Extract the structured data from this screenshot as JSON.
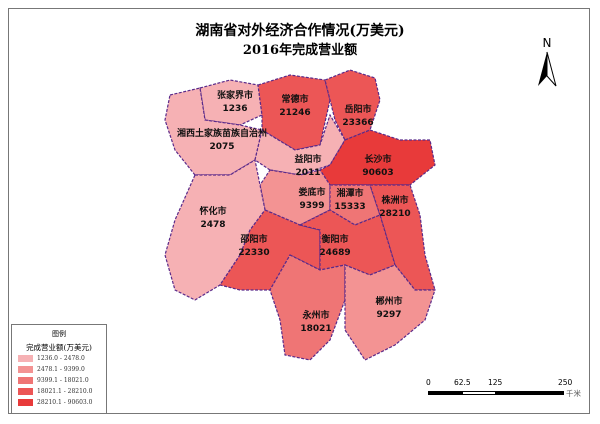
{
  "title": {
    "line1": "湖南省对外经济合作情况(万美元)",
    "line2": "2016年完成营业额"
  },
  "colors": {
    "class1": "#f6b1b4",
    "class2": "#f39393",
    "class3": "#ef7575",
    "class4": "#ec5656",
    "class5": "#e83a3a",
    "border": "#5a2a8a"
  },
  "regions": [
    {
      "name": "张家界市",
      "value": "1236",
      "class": 1
    },
    {
      "name": "常德市",
      "value": "21246",
      "class": 4
    },
    {
      "name": "岳阳市",
      "value": "23366",
      "class": 4
    },
    {
      "name": "湘西土家族苗族自治州",
      "value": "2075",
      "class": 1
    },
    {
      "name": "益阳市",
      "value": "2011",
      "class": 1
    },
    {
      "name": "长沙市",
      "value": "90603",
      "class": 5
    },
    {
      "name": "娄底市",
      "value": "9399",
      "class": 2
    },
    {
      "name": "湘潭市",
      "value": "15333",
      "class": 3
    },
    {
      "name": "株洲市",
      "value": "28210",
      "class": 4
    },
    {
      "name": "怀化市",
      "value": "2478",
      "class": 1
    },
    {
      "name": "邵阳市",
      "value": "22330",
      "class": 4
    },
    {
      "name": "衡阳市",
      "value": "24689",
      "class": 4
    },
    {
      "name": "永州市",
      "value": "18021",
      "class": 3
    },
    {
      "name": "郴州市",
      "value": "9297",
      "class": 2
    }
  ],
  "legend": {
    "title": "图例",
    "subtitle": "完成营业额(万美元)",
    "items": [
      "1236.0 - 2478.0",
      "2478.1 - 9399.0",
      "9399.1 - 18021.0",
      "18021.1 - 28210.0",
      "28210.1 - 90603.0"
    ]
  },
  "north_arrow": {
    "label": "N"
  },
  "scale_bar": {
    "ticks": [
      "0",
      "62.5",
      "125",
      "250"
    ],
    "unit": "千米"
  }
}
